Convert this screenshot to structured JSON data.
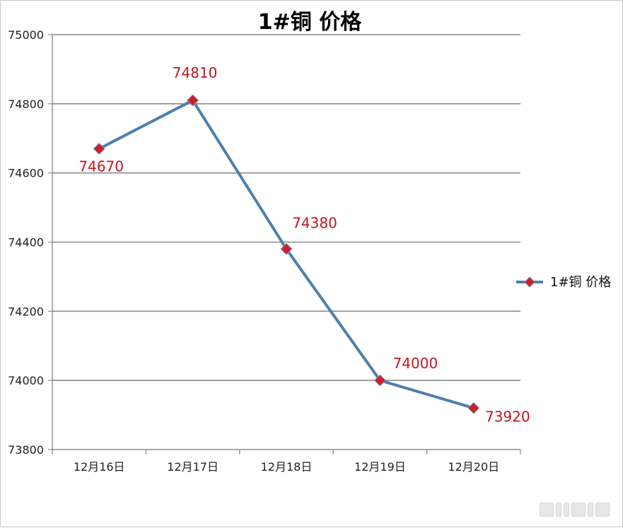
{
  "chart_data": {
    "type": "line",
    "title": "1#铜 价格",
    "categories": [
      "12月16日",
      "12月17日",
      "12月18日",
      "12月19日",
      "12月20日"
    ],
    "series": [
      {
        "name": "1#铜 价格",
        "values": [
          74670,
          74810,
          74380,
          74000,
          73920
        ],
        "color": "#4e7fad",
        "marker_color": "#cc1f2b"
      }
    ],
    "data_labels": [
      "74670",
      "74810",
      "74380",
      "74000",
      "73920"
    ],
    "ylim": [
      73800,
      75000
    ],
    "yticks": [
      73800,
      74000,
      74200,
      74400,
      74600,
      74800,
      75000
    ],
    "grid": true,
    "legend": "right",
    "label_color": "#c0161f"
  }
}
